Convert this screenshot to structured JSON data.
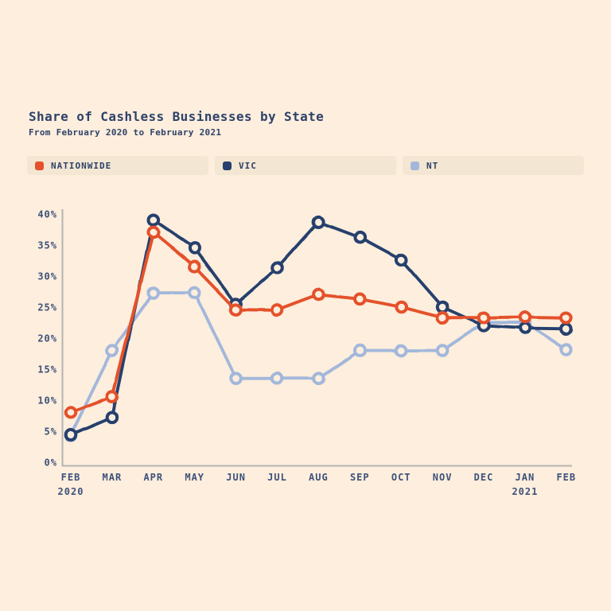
{
  "header": {
    "title": "Share of Cashless Businesses by State",
    "subtitle": "From February 2020 to February 2021"
  },
  "palette": {
    "background": "#fdeedd",
    "legend_pill": "#f3e6d2",
    "title_text": "#2e4269",
    "axis_label_text": "#3e517a",
    "axis_line": "#a8a8a8"
  },
  "chart_data": {
    "type": "line",
    "title": "Share of Cashless Businesses by State",
    "subtitle": "From February 2020 to February 2021",
    "x_categories": [
      "FEB",
      "MAR",
      "APR",
      "MAY",
      "JUN",
      "JUL",
      "AUG",
      "SEP",
      "OCT",
      "NOV",
      "DEC",
      "JAN",
      "FEB"
    ],
    "x_sublabels": [
      {
        "index": 0,
        "text": "2020"
      },
      {
        "index": 11,
        "text": "2021"
      }
    ],
    "series": [
      {
        "name": "NATIONWIDE",
        "color": "#e4512b",
        "values": [
          8,
          10.5,
          37,
          31.5,
          24.6,
          24.5,
          27,
          26.3,
          25,
          23.3,
          23.3,
          23.4,
          23.3
        ]
      },
      {
        "name": "VIC",
        "color": "#27406d",
        "values": [
          4.4,
          7.2,
          39,
          34.5,
          25.5,
          31.3,
          38.7,
          36.2,
          32.6,
          25,
          22,
          21.6,
          21.5
        ]
      },
      {
        "name": "NT",
        "color": "#a3b7db",
        "values": [
          4.3,
          18,
          27.3,
          27.3,
          13.5,
          13.5,
          13.5,
          18,
          18,
          18,
          22.5,
          22.5,
          18.2
        ]
      }
    ],
    "y_ticks": [
      "0%",
      "5%",
      "10%",
      "15%",
      "20%",
      "25%",
      "30%",
      "35%",
      "40%"
    ],
    "ylim": [
      0,
      40
    ],
    "y_tick_step": 5,
    "value_suffix": "%",
    "grid": false,
    "legend_position": "top",
    "marker": "open-circle"
  }
}
